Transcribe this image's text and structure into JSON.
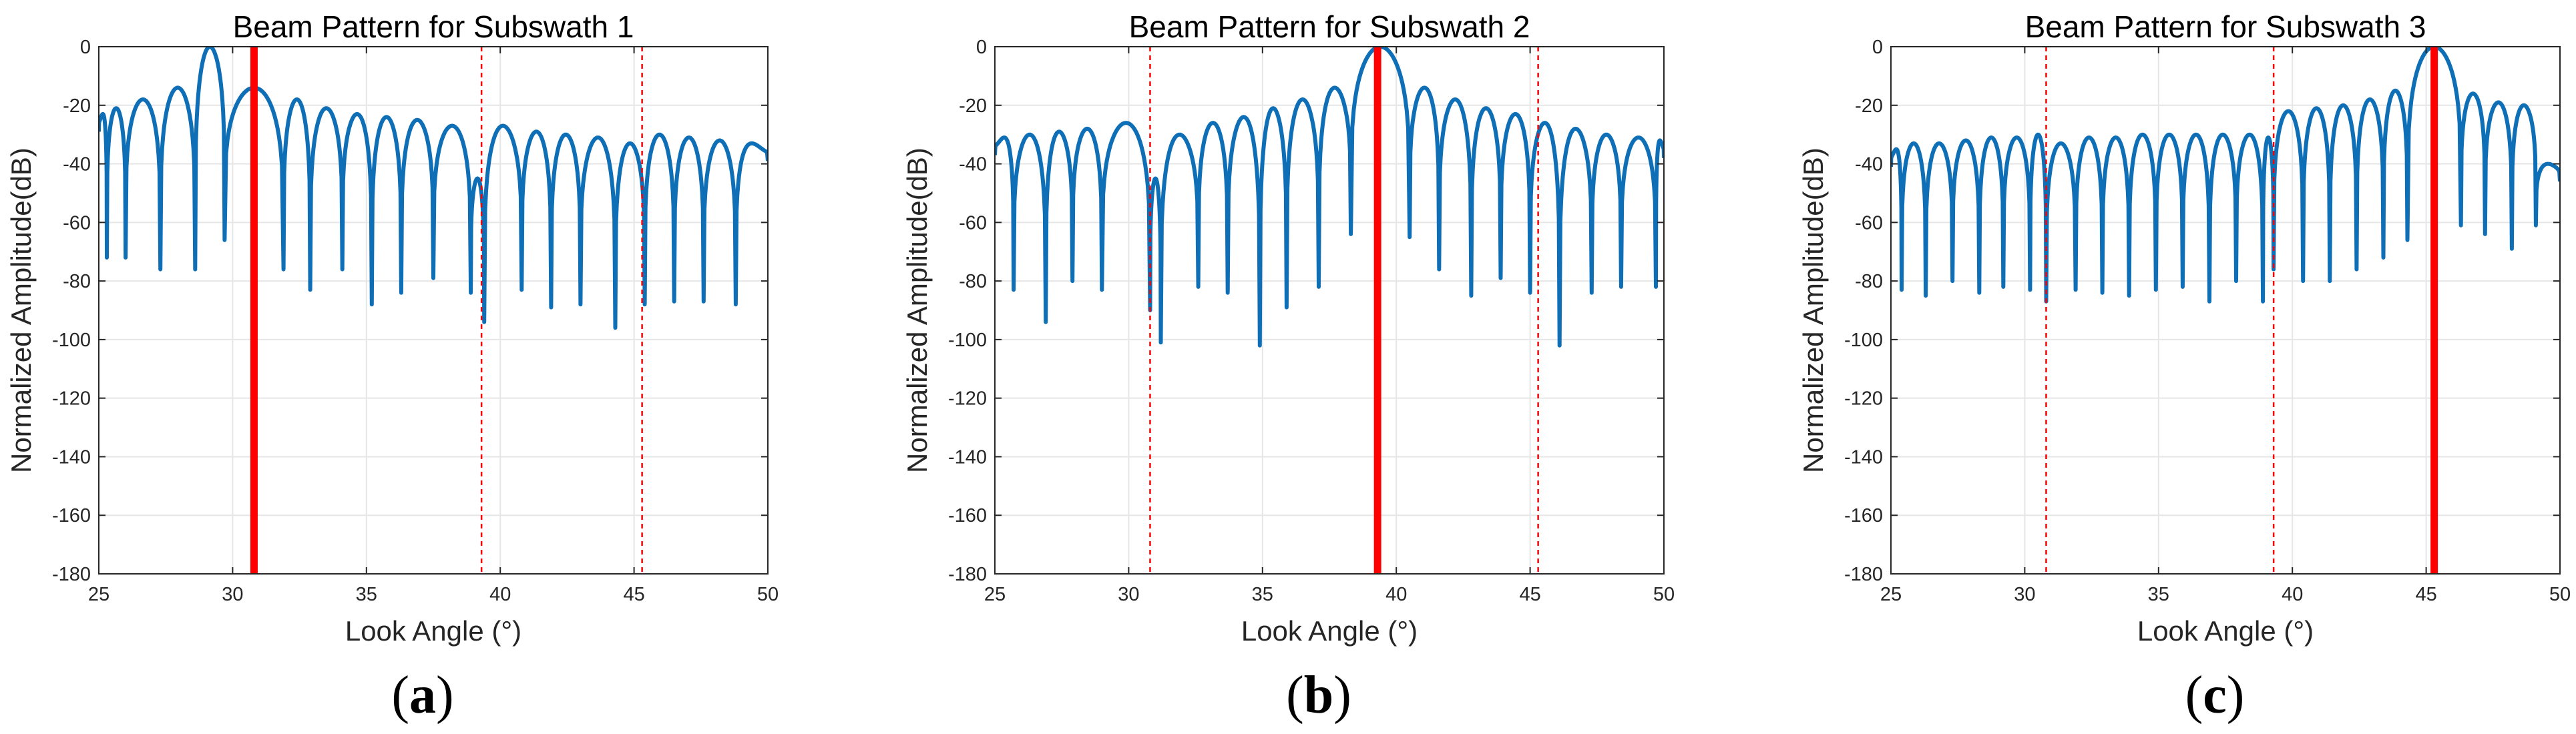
{
  "chart_data": [
    {
      "type": "line",
      "title": "Beam Pattern for Subswath 1",
      "xlabel": "Look Angle (°)",
      "ylabel": "Normalized Amplitude(dB)",
      "xlim": [
        25,
        50
      ],
      "ylim": [
        -180,
        0
      ],
      "xticks": [
        25,
        30,
        35,
        40,
        45,
        50
      ],
      "yticks": [
        0,
        -20,
        -40,
        -60,
        -80,
        -100,
        -120,
        -140,
        -160,
        -180
      ],
      "grid": true,
      "caption": {
        "letter": "a",
        "open": "(",
        "close": ")"
      },
      "main_beam_angle": 30.8,
      "other_subswath_angles": [
        39.3,
        45.3
      ],
      "null_angles": [
        25.3,
        26.0,
        27.3,
        28.6,
        29.7,
        31.9,
        32.9,
        34.1,
        35.2,
        36.3,
        37.5,
        38.9,
        39.4,
        40.8,
        41.9,
        43.0,
        44.3,
        45.4,
        46.5,
        47.6,
        48.8
      ],
      "null_depths": [
        -72,
        -72,
        -76,
        -76,
        -66,
        -76,
        -83,
        -76,
        -88,
        -84,
        -79,
        -84,
        -94,
        -83,
        -89,
        -88,
        -96,
        -88,
        -87,
        -87,
        -88
      ],
      "lobe_peaks": [
        -23,
        -21,
        -18,
        -14,
        0,
        -14,
        -18,
        -21,
        -23,
        -24,
        -25,
        -27,
        -45,
        -27,
        -29,
        -30,
        -31,
        -33,
        -30,
        -31,
        -32,
        -33
      ]
    },
    {
      "type": "line",
      "title": "Beam Pattern for Subswath 2",
      "xlabel": "Look Angle (°)",
      "ylabel": "Normalized Amplitude(dB)",
      "xlim": [
        25,
        50
      ],
      "ylim": [
        -180,
        0
      ],
      "xticks": [
        25,
        30,
        35,
        40,
        45,
        50
      ],
      "yticks": [
        0,
        -20,
        -40,
        -60,
        -80,
        -100,
        -120,
        -140,
        -160,
        -180
      ],
      "grid": true,
      "caption": {
        "letter": "b",
        "open": "(",
        "close": ")"
      },
      "main_beam_angle": 39.3,
      "other_subswath_angles": [
        30.8,
        45.3
      ],
      "null_angles": [
        25.7,
        26.9,
        27.9,
        29.0,
        30.8,
        31.2,
        32.6,
        33.7,
        34.9,
        35.9,
        37.1,
        38.3,
        40.5,
        41.6,
        42.8,
        43.9,
        45.0,
        46.1,
        47.3,
        48.4,
        49.7
      ],
      "null_depths": [
        -83,
        -94,
        -80,
        -83,
        -90,
        -101,
        -82,
        -84,
        -102,
        -89,
        -82,
        -64,
        -65,
        -76,
        -85,
        -79,
        -84,
        -102,
        -84,
        -82,
        -82
      ],
      "lobe_peaks": [
        -31,
        -30,
        -29,
        -28,
        -26,
        -45,
        -30,
        -26,
        -24,
        -21,
        -18,
        -14,
        0,
        -14,
        -18,
        -21,
        -23,
        -26,
        -28,
        -30,
        -31,
        -32
      ]
    },
    {
      "type": "line",
      "title": "Beam Pattern for Subswath 3",
      "xlabel": "Look Angle (°)",
      "ylabel": "Normalized Amplitude(dB)",
      "xlim": [
        25,
        50
      ],
      "ylim": [
        -180,
        0
      ],
      "xticks": [
        25,
        30,
        35,
        40,
        45,
        50
      ],
      "yticks": [
        0,
        -20,
        -40,
        -60,
        -80,
        -100,
        -120,
        -140,
        -160,
        -180
      ],
      "grid": true,
      "caption": {
        "letter": "c",
        "open": "(",
        "close": ")"
      },
      "main_beam_angle": 45.3,
      "other_subswath_angles": [
        30.8,
        39.3
      ],
      "null_angles": [
        25.4,
        26.3,
        27.3,
        28.3,
        29.2,
        30.2,
        30.8,
        31.9,
        32.9,
        33.9,
        34.9,
        35.9,
        36.9,
        37.9,
        38.9,
        39.3,
        40.4,
        41.4,
        42.4,
        43.4,
        44.3,
        46.3,
        47.2,
        48.2,
        49.1
      ],
      "null_depths": [
        -83,
        -85,
        -80,
        -84,
        -82,
        -83,
        -87,
        -83,
        -84,
        -85,
        -83,
        -82,
        -87,
        -80,
        -87,
        -76,
        -80,
        -80,
        -76,
        -72,
        -66,
        -61,
        -64,
        -69,
        -61
      ],
      "lobe_peaks": [
        -35,
        -33,
        -33,
        -32,
        -31,
        -31,
        -30,
        -33,
        -31,
        -31,
        -30,
        -30,
        -30,
        -30,
        -30,
        -31,
        -22,
        -21,
        -20,
        -18,
        -15,
        0,
        -16,
        -19,
        -20,
        -40
      ]
    }
  ]
}
